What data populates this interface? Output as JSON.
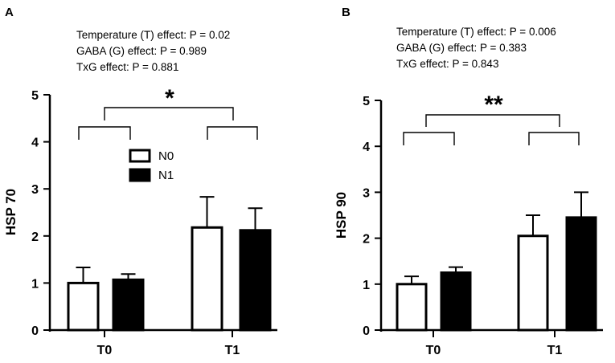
{
  "chart_data": [
    {
      "type": "bar",
      "panel_label": "A",
      "stats": [
        "Temperature (T) effect: P = 0.02",
        "GABA (G) effect: P = 0.989",
        "TxG effect: P = 0.881"
      ],
      "ylabel": "HSP 70",
      "xlabel": "",
      "categories": [
        "T0",
        "T1"
      ],
      "ylim": [
        0,
        5
      ],
      "yticks": [
        "0",
        "1",
        "2",
        "3",
        "4",
        "5"
      ],
      "series": [
        {
          "name": "N0",
          "fill": "#ffffff",
          "values": [
            1.0,
            2.18
          ],
          "errors": [
            0.33,
            0.65
          ]
        },
        {
          "name": "N1",
          "fill": "#000000",
          "values": [
            1.07,
            2.12
          ],
          "errors": [
            0.12,
            0.47
          ]
        }
      ],
      "legend": {
        "position": "top-left-inside",
        "entries": [
          "N0",
          "N1"
        ]
      },
      "significance": {
        "main": "*"
      }
    },
    {
      "type": "bar",
      "panel_label": "B",
      "stats": [
        "Temperature (T) effect: P = 0.006",
        "GABA (G) effect: P = 0.383",
        "TxG effect: P = 0.843"
      ],
      "ylabel": "HSP 90",
      "xlabel": "",
      "categories": [
        "T0",
        "T1"
      ],
      "ylim": [
        0,
        5
      ],
      "yticks": [
        "0",
        "1",
        "2",
        "3",
        "4",
        "5"
      ],
      "series": [
        {
          "name": "N0",
          "fill": "#ffffff",
          "values": [
            1.0,
            2.05
          ],
          "errors": [
            0.17,
            0.45
          ]
        },
        {
          "name": "N1",
          "fill": "#000000",
          "values": [
            1.25,
            2.45
          ],
          "errors": [
            0.12,
            0.55
          ]
        }
      ],
      "significance": {
        "main": "**"
      }
    }
  ]
}
